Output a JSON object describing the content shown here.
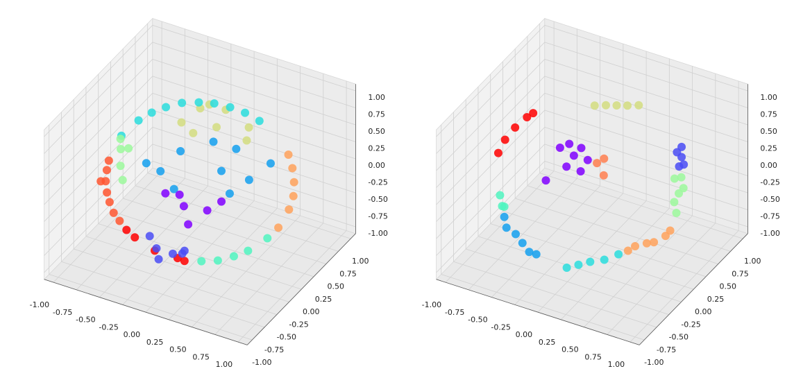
{
  "chart_data": [
    {
      "type": "scatter3d",
      "xlim": [
        -1.1,
        1.1
      ],
      "ylim": [
        -1.1,
        1.1
      ],
      "zlim": [
        -1.1,
        1.1
      ],
      "xticks": [
        {
          "value": -1,
          "label": "-1.00"
        },
        {
          "value": -0.75,
          "label": "-0.75"
        },
        {
          "value": -0.5,
          "label": "-0.50"
        },
        {
          "value": -0.25,
          "label": "-0.25"
        },
        {
          "value": 0,
          "label": "0.00"
        },
        {
          "value": 0.25,
          "label": "0.25"
        },
        {
          "value": 0.5,
          "label": "0.50"
        },
        {
          "value": 0.75,
          "label": "0.75"
        },
        {
          "value": 1,
          "label": "1.00"
        }
      ],
      "yticks": [
        {
          "value": -1,
          "label": "-1.00"
        },
        {
          "value": -0.75,
          "label": "-0.75"
        },
        {
          "value": -0.5,
          "label": "-0.50"
        },
        {
          "value": -0.25,
          "label": "-0.25"
        },
        {
          "value": 0,
          "label": "0.00"
        },
        {
          "value": 0.25,
          "label": "0.25"
        },
        {
          "value": 0.5,
          "label": "0.50"
        },
        {
          "value": 0.75,
          "label": "0.75"
        },
        {
          "value": 1,
          "label": "1.00"
        }
      ],
      "zticks": [
        {
          "value": -1,
          "label": "-1.00"
        },
        {
          "value": -0.75,
          "label": "-0.75"
        },
        {
          "value": -0.5,
          "label": "-0.50"
        },
        {
          "value": -0.25,
          "label": "-0.25"
        },
        {
          "value": 0,
          "label": "0.00"
        },
        {
          "value": 0.25,
          "label": "0.25"
        },
        {
          "value": 0.5,
          "label": "0.50"
        },
        {
          "value": 0.75,
          "label": "0.75"
        },
        {
          "value": 1,
          "label": "1.00"
        }
      ],
      "grid": true,
      "series": [
        {
          "color": "#d4dd80",
          "x": [
            -0.6,
            -0.45,
            -0.3,
            -0.2,
            0.0,
            -0.5,
            0.05,
            -0.35
          ],
          "y": [
            0.75,
            0.85,
            0.9,
            0.9,
            0.95,
            0.8,
            0.9,
            0.85
          ],
          "z": [
            0.05,
            0.25,
            0.0,
            0.3,
            -0.1,
            -0.1,
            0.15,
            0.35
          ]
        },
        {
          "color": "#2adddd",
          "x": [
            0.33,
            0.19,
            0.05,
            -0.09,
            -0.22,
            -0.36,
            -0.48,
            -0.58,
            -0.67,
            -0.77
          ],
          "y": [
            0.59,
            0.56,
            0.52,
            0.46,
            0.39,
            0.31,
            0.21,
            0.11,
            0.01,
            -0.15
          ],
          "z": [
            0.6,
            0.68,
            0.73,
            0.77,
            0.78,
            0.77,
            0.73,
            0.68,
            0.6,
            0.45
          ]
        },
        {
          "color": "#ff5630",
          "x": [
            -0.81,
            -0.8,
            -0.78,
            -0.74,
            -0.69,
            -0.63,
            -0.56,
            -0.82
          ],
          "y": [
            -0.33,
            -0.39,
            -0.45,
            -0.5,
            -0.54,
            -0.57,
            -0.58,
            -0.475
          ],
          "z": [
            0.2,
            0.11,
            0.0,
            -0.11,
            -0.2,
            -0.31,
            -0.39,
            0.0
          ]
        },
        {
          "color": "#9cf99c",
          "x": [
            -0.75,
            -0.7,
            -0.72,
            -0.65,
            -0.78
          ],
          "y": [
            -0.2,
            -0.3,
            -0.1,
            -0.35,
            -0.15
          ],
          "z": [
            0.3,
            0.15,
            0.25,
            0.0,
            0.4
          ]
        },
        {
          "color": "#14a0ee",
          "x": [
            0.5,
            0.0,
            0.9,
            0.2,
            0.75,
            -0.05,
            0.8,
            0.2,
            0.5,
            -0.1
          ],
          "y": [
            -0.5,
            -0.8,
            -0.25,
            -0.1,
            -0.8,
            -0.3,
            -0.5,
            -0.9,
            -0.2,
            -0.9
          ],
          "z": [
            0.75,
            0.75,
            0.85,
            0.75,
            0.75,
            0.65,
            0.75,
            0.65,
            0.85,
            0.9
          ]
        },
        {
          "color": "#8000ff",
          "x": [
            0.2,
            0.4,
            0.0,
            0.3,
            0.5,
            0.1
          ],
          "y": [
            -0.7,
            -0.6,
            -0.7,
            -0.8,
            -0.5,
            -0.6
          ],
          "z": [
            0.25,
            0.2,
            0.35,
            0.1,
            0.3,
            0.3
          ]
        },
        {
          "color": "#ffa25c",
          "x": [
            0.66,
            0.73,
            0.78,
            0.81,
            0.81,
            0.77
          ],
          "y": [
            0.56,
            0.51,
            0.45,
            0.38,
            0.29,
            0.15
          ],
          "z": [
            0.27,
            0.14,
            0.0,
            -0.14,
            -0.27,
            -0.45
          ]
        },
        {
          "color": "#50f5c0",
          "x": [
            0.225,
            0.36,
            0.48,
            0.58,
            0.71
          ],
          "y": [
            -0.39,
            -0.31,
            -0.21,
            -0.11,
            0.04
          ],
          "z": [
            -0.78,
            -0.77,
            -0.73,
            -0.68,
            -0.55
          ]
        },
        {
          "color": "#ff0000",
          "x": [
            -0.48,
            -0.39,
            -0.19,
            0.02,
            0.1
          ],
          "y": [
            -0.59,
            -0.59,
            -0.56,
            -0.49,
            -0.5
          ],
          "z": [
            -0.48,
            -0.55,
            -0.68,
            -0.75,
            -0.75
          ]
        },
        {
          "color": "#4a4cf5",
          "x": [
            -0.15,
            0.0,
            -0.25,
            0.05,
            -0.1,
            0.1
          ],
          "y": [
            -0.6,
            -0.55,
            -0.55,
            -0.45,
            -0.65,
            -0.5
          ],
          "z": [
            -0.6,
            -0.65,
            -0.5,
            -0.7,
            -0.7,
            -0.6
          ]
        }
      ]
    },
    {
      "type": "scatter3d",
      "xlim": [
        -1.1,
        1.1
      ],
      "ylim": [
        -1.1,
        1.1
      ],
      "zlim": [
        -1.1,
        1.1
      ],
      "xticks": [
        {
          "value": -1,
          "label": "-1.00"
        },
        {
          "value": -0.75,
          "label": "-0.75"
        },
        {
          "value": -0.5,
          "label": "-0.50"
        },
        {
          "value": -0.25,
          "label": "-0.25"
        },
        {
          "value": 0,
          "label": "0.00"
        },
        {
          "value": 0.25,
          "label": "0.25"
        },
        {
          "value": 0.5,
          "label": "0.50"
        },
        {
          "value": 0.75,
          "label": "0.75"
        },
        {
          "value": 1,
          "label": "1.00"
        }
      ],
      "yticks": [
        {
          "value": -1,
          "label": "-1.00"
        },
        {
          "value": -0.75,
          "label": "-0.75"
        },
        {
          "value": -0.5,
          "label": "-0.50"
        },
        {
          "value": -0.25,
          "label": "-0.25"
        },
        {
          "value": 0,
          "label": "0.00"
        },
        {
          "value": 0.25,
          "label": "0.25"
        },
        {
          "value": 0.5,
          "label": "0.50"
        },
        {
          "value": 0.75,
          "label": "0.75"
        },
        {
          "value": 1,
          "label": "1.00"
        }
      ],
      "zticks": [
        {
          "value": -1,
          "label": "-1.00"
        },
        {
          "value": -0.75,
          "label": "-0.75"
        },
        {
          "value": -0.5,
          "label": "-0.50"
        },
        {
          "value": -0.25,
          "label": "-0.25"
        },
        {
          "value": 0,
          "label": "0.00"
        },
        {
          "value": 0.25,
          "label": "0.25"
        },
        {
          "value": 0.5,
          "label": "0.50"
        },
        {
          "value": 0.75,
          "label": "0.75"
        },
        {
          "value": 1,
          "label": "1.00"
        }
      ],
      "grid": true,
      "series": [
        {
          "color": "#d4dd80",
          "x": [
            -0.18,
            -0.09,
            0.0,
            0.09,
            0.18
          ],
          "y": [
            0.39,
            0.45,
            0.5,
            0.55,
            0.61
          ],
          "z": [
            0.75,
            0.75,
            0.75,
            0.75,
            0.75
          ]
        },
        {
          "color": "#ff0000",
          "x": [
            -0.67,
            -0.71,
            -0.78,
            -0.83,
            -0.85
          ],
          "y": [
            0.06,
            0.01,
            -0.1,
            -0.21,
            -0.31
          ],
          "z": [
            0.67,
            0.63,
            0.53,
            0.41,
            0.28
          ]
        },
        {
          "color": "#8000ff",
          "x": [
            -0.25,
            -0.4,
            -0.1,
            -0.25,
            -0.25,
            -0.3,
            -0.15,
            -0.5
          ],
          "y": [
            0.1,
            0.1,
            0.1,
            0.25,
            -0.05,
            0.1,
            0.05,
            0.0
          ],
          "z": [
            0.2,
            0.25,
            0.2,
            0.2,
            0.15,
            0.35,
            0.05,
            -0.2
          ]
        },
        {
          "color": "#ff7f50",
          "x": [
            0.0,
            0.1,
            0.05
          ],
          "y": [
            0.1,
            0.05,
            0.15
          ],
          "z": [
            0.2,
            0.1,
            0.25
          ]
        },
        {
          "color": "#4a4cf5",
          "x": [
            0.65,
            0.65,
            0.65,
            0.6,
            0.7
          ],
          "y": [
            0.6,
            0.6,
            0.55,
            0.6,
            0.55
          ],
          "z": [
            0.35,
            0.2,
            0.1,
            0.25,
            0.15
          ]
        },
        {
          "color": "#9cf99c",
          "x": [
            0.7,
            0.7,
            0.65,
            0.7,
            0.6,
            0.75
          ],
          "y": [
            0.5,
            0.45,
            0.45,
            0.4,
            0.55,
            0.45
          ],
          "z": [
            0.0,
            -0.2,
            -0.35,
            -0.45,
            -0.1,
            -0.1
          ]
        },
        {
          "color": "#50f5c0",
          "x": [
            -0.6,
            -0.55,
            -0.65
          ],
          "y": [
            -0.7,
            -0.75,
            -0.65
          ],
          "z": [
            -0.1,
            -0.05,
            0.0
          ]
        },
        {
          "color": "#14a0ee",
          "x": [
            -0.5,
            -0.3,
            -0.15,
            -0.4,
            -0.55,
            -0.2
          ],
          "y": [
            -0.8,
            -0.85,
            -0.85,
            -0.8,
            -0.75,
            -0.9
          ],
          "z": [
            -0.3,
            -0.4,
            -0.5,
            -0.35,
            -0.2,
            -0.45
          ]
        },
        {
          "color": "#2adddd",
          "x": [
            0.1,
            0.2,
            0.3,
            0.4,
            0.5
          ],
          "y": [
            -0.7,
            -0.65,
            -0.6,
            -0.5,
            -0.4
          ],
          "z": [
            -0.7,
            -0.65,
            -0.6,
            -0.6,
            -0.55
          ]
        },
        {
          "color": "#ffa25c",
          "x": [
            0.55,
            0.6,
            0.7,
            0.75,
            0.85,
            0.9
          ],
          "y": [
            -0.3,
            -0.25,
            -0.2,
            -0.15,
            -0.1,
            -0.1
          ],
          "z": [
            -0.55,
            -0.5,
            -0.45,
            -0.45,
            -0.35,
            -0.25
          ]
        }
      ]
    }
  ]
}
